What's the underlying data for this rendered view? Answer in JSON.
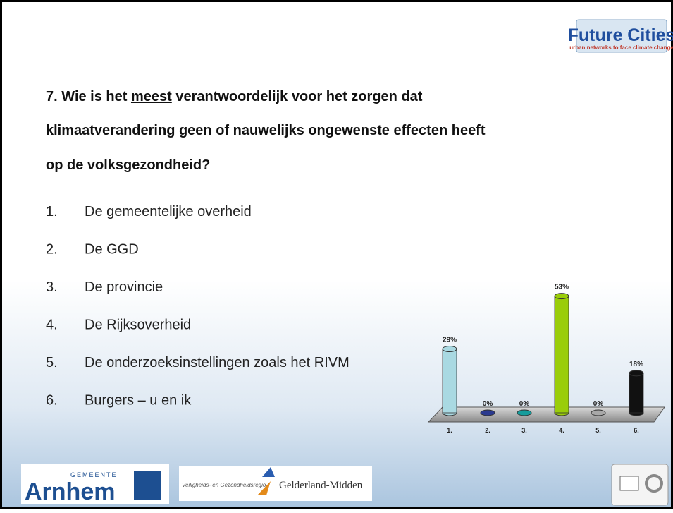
{
  "logo": {
    "title": "Future Cities",
    "subtitle": "urban networks to face climate change"
  },
  "question": {
    "prefix": "7. Wie is het ",
    "emphasis": "meest",
    "line1_rest": " verantwoordelijk voor het zorgen dat",
    "line2": "klimaatverandering geen of nauwelijks ongewenste effecten heeft",
    "line3": "op de volksgezondheid?"
  },
  "options": [
    {
      "number": "1.",
      "label": "De gemeentelijke overheid"
    },
    {
      "number": "2.",
      "label": "De GGD"
    },
    {
      "number": "3.",
      "label": "De provincie"
    },
    {
      "number": "4.",
      "label": "De Rijksoverheid"
    },
    {
      "number": "5.",
      "label": "De onderzoeksinstellingen zoals het RIVM"
    },
    {
      "number": "6.",
      "label": "Burgers – u en ik"
    }
  ],
  "chart_data": {
    "type": "bar",
    "categories": [
      "1.",
      "2.",
      "3.",
      "4.",
      "5.",
      "6."
    ],
    "values": [
      29,
      0,
      0,
      53,
      0,
      18
    ],
    "value_labels": [
      "29%",
      "0%",
      "0%",
      "53%",
      "0%",
      "18%"
    ],
    "colors": [
      "#a9d9e2",
      "#2b3a8f",
      "#169c9c",
      "#9acd0a",
      "#a8a8a8",
      "#111111"
    ]
  },
  "footer": {
    "municipality_small": "GEMEENTE",
    "municipality": "Arnhem",
    "region_small": "Veiligheids- en Gezondheidsregio",
    "region": "Gelderland-Midden"
  }
}
